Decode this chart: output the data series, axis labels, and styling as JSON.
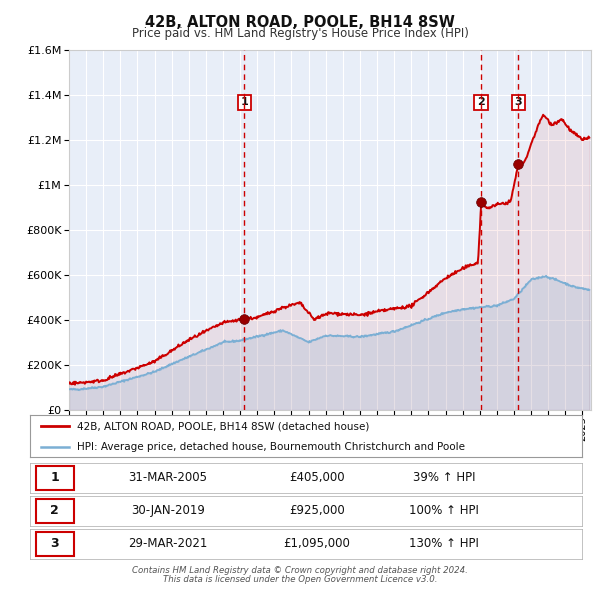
{
  "title": "42B, ALTON ROAD, POOLE, BH14 8SW",
  "subtitle": "Price paid vs. HM Land Registry's House Price Index (HPI)",
  "bg_color": "#f0f0f0",
  "plot_bg_color": "#e8eef8",
  "grid_color": "#ffffff",
  "red_color": "#cc0000",
  "blue_color": "#7bafd4",
  "ylim": [
    0,
    1600000
  ],
  "yticks": [
    0,
    200000,
    400000,
    600000,
    800000,
    1000000,
    1200000,
    1400000,
    1600000
  ],
  "ytick_labels": [
    "£0",
    "£200K",
    "£400K",
    "£600K",
    "£800K",
    "£1M",
    "£1.2M",
    "£1.4M",
    "£1.6M"
  ],
  "xlim_start": 1995.0,
  "xlim_end": 2025.5,
  "sale_events": [
    {
      "num": 1,
      "date_str": "31-MAR-2005",
      "x": 2005.25,
      "price": 405000,
      "pct": "39%",
      "vline_style": "dashed"
    },
    {
      "num": 2,
      "date_str": "30-JAN-2019",
      "x": 2019.08,
      "price": 925000,
      "pct": "100%",
      "vline_style": "dashed"
    },
    {
      "num": 3,
      "date_str": "29-MAR-2021",
      "x": 2021.25,
      "price": 1095000,
      "pct": "130%",
      "vline_style": "dashed"
    }
  ],
  "footer_line1": "Contains HM Land Registry data © Crown copyright and database right 2024.",
  "footer_line2": "This data is licensed under the Open Government Licence v3.0.",
  "legend_entries": [
    "42B, ALTON ROAD, POOLE, BH14 8SW (detached house)",
    "HPI: Average price, detached house, Bournemouth Christchurch and Poole"
  ]
}
